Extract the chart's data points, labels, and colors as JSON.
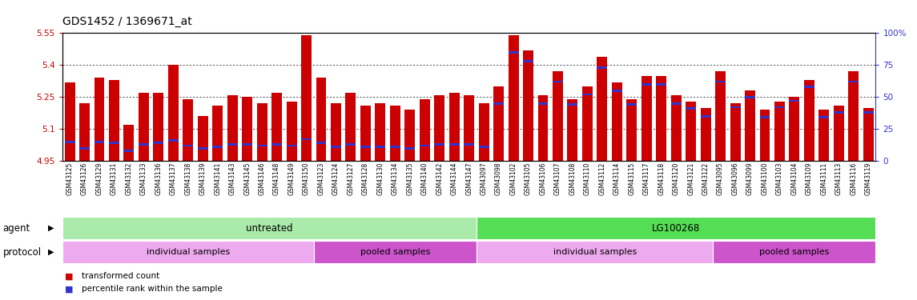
{
  "title": "GDS1452 / 1369671_at",
  "left_ylim": [
    4.95,
    5.55
  ],
  "right_ylim": [
    0,
    100
  ],
  "left_yticks": [
    4.95,
    5.1,
    5.25,
    5.4,
    5.55
  ],
  "right_yticks": [
    0,
    25,
    50,
    75,
    100
  ],
  "left_ytick_labels": [
    "4.95",
    "5.1",
    "5.25",
    "5.4",
    "5.55"
  ],
  "right_ytick_labels": [
    "0",
    "25",
    "50",
    "75",
    "100%"
  ],
  "bar_color": "#cc0000",
  "blue_color": "#3333cc",
  "samples": [
    "GSM43125",
    "GSM43126",
    "GSM43129",
    "GSM43131",
    "GSM43132",
    "GSM43133",
    "GSM43136",
    "GSM43137",
    "GSM43138",
    "GSM43139",
    "GSM43141",
    "GSM43143",
    "GSM43145",
    "GSM43146",
    "GSM43148",
    "GSM43149",
    "GSM43150",
    "GSM43123",
    "GSM43124",
    "GSM43127",
    "GSM43128",
    "GSM43130",
    "GSM43134",
    "GSM43135",
    "GSM43140",
    "GSM43142",
    "GSM43144",
    "GSM43147",
    "GSM43097",
    "GSM43098",
    "GSM43102",
    "GSM43105",
    "GSM43106",
    "GSM43107",
    "GSM43108",
    "GSM43110",
    "GSM43112",
    "GSM43114",
    "GSM43115",
    "GSM43117",
    "GSM43118",
    "GSM43120",
    "GSM43121",
    "GSM43122",
    "GSM43095",
    "GSM43096",
    "GSM43099",
    "GSM43100",
    "GSM43103",
    "GSM43104",
    "GSM43109",
    "GSM43111",
    "GSM43113",
    "GSM43116",
    "GSM43119"
  ],
  "values": [
    5.32,
    5.22,
    5.34,
    5.33,
    5.12,
    5.27,
    5.27,
    5.4,
    5.24,
    5.16,
    5.21,
    5.26,
    5.25,
    5.22,
    5.27,
    5.23,
    5.54,
    5.34,
    5.22,
    5.27,
    5.21,
    5.22,
    5.21,
    5.19,
    5.24,
    5.26,
    5.27,
    5.26,
    5.22,
    5.3,
    5.54,
    5.47,
    5.26,
    5.37,
    5.24,
    5.3,
    5.44,
    5.32,
    5.24,
    5.35,
    5.35,
    5.26,
    5.23,
    5.2,
    5.37,
    5.22,
    5.28,
    5.19,
    5.23,
    5.25,
    5.33,
    5.19,
    5.21,
    5.37,
    5.2
  ],
  "percentile_values": [
    15,
    10,
    15,
    14,
    8,
    13,
    14,
    16,
    12,
    10,
    11,
    13,
    13,
    12,
    13,
    12,
    17,
    14,
    11,
    13,
    11,
    11,
    11,
    10,
    12,
    13,
    13,
    13,
    11,
    45,
    85,
    78,
    45,
    62,
    44,
    52,
    73,
    55,
    44,
    60,
    60,
    45,
    41,
    35,
    62,
    42,
    50,
    34,
    42,
    47,
    58,
    34,
    38,
    62,
    38
  ],
  "agent_groups": [
    {
      "label": "untreated",
      "start": 0,
      "end": 28,
      "color": "#aaeaaa"
    },
    {
      "label": "LG100268",
      "start": 28,
      "end": 55,
      "color": "#55dd55"
    }
  ],
  "protocol_groups": [
    {
      "label": "individual samples",
      "start": 0,
      "end": 17,
      "color": "#eeaaee"
    },
    {
      "label": "pooled samples",
      "start": 17,
      "end": 28,
      "color": "#cc55cc"
    },
    {
      "label": "individual samples",
      "start": 28,
      "end": 44,
      "color": "#eeaaee"
    },
    {
      "label": "pooled samples",
      "start": 44,
      "end": 55,
      "color": "#cc55cc"
    }
  ],
  "legend_items": [
    {
      "label": "transformed count",
      "color": "#cc0000"
    },
    {
      "label": "percentile rank within the sample",
      "color": "#3333cc"
    }
  ],
  "bar_bottom": 4.95,
  "bar_width": 0.7,
  "axis_label_color_left": "#cc0000",
  "axis_label_color_right": "#3333cc",
  "title_fontsize": 10,
  "tick_fontsize": 7.5,
  "sample_fontsize": 5.5
}
